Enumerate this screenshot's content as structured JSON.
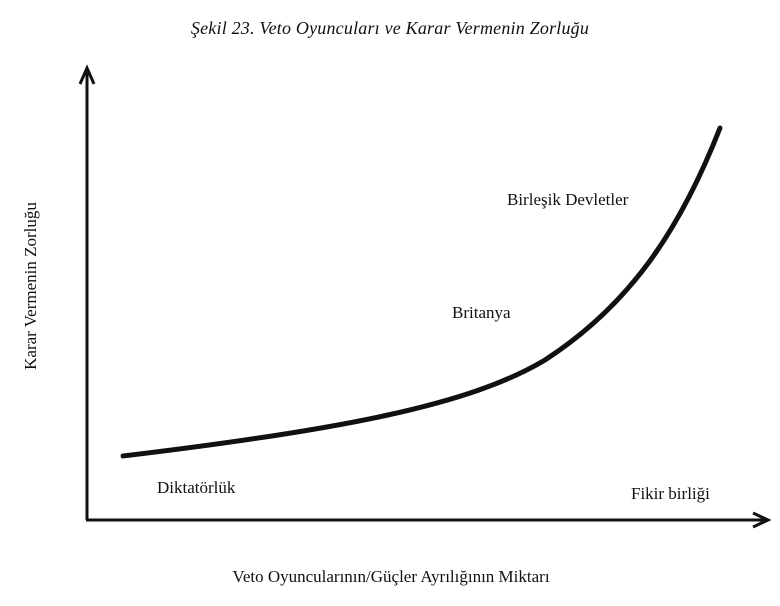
{
  "figure": {
    "title": "Şekil 23. Veto Oyuncuları ve Karar Vermenin Zorluğu",
    "x_axis_label": "Veto Oyuncularının/Güçler Ayrılığının Miktarı",
    "y_axis_label": "Karar Vermenin Zorluğu"
  },
  "annotations": {
    "us": "Birleşik Devletler",
    "britain": "Britanya",
    "dictatorship": "Diktatörlük",
    "consensus": "Fikir birliği"
  },
  "colors": {
    "ink": "#111111",
    "background": "#ffffff"
  }
}
